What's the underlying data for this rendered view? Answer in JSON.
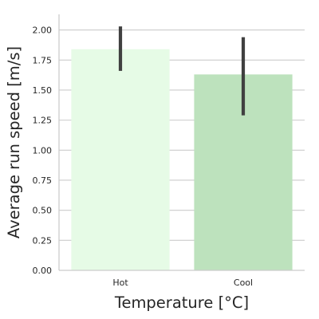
{
  "chart_data": {
    "type": "bar",
    "categories": [
      "Hot",
      "Cool"
    ],
    "values": [
      1.84,
      1.63
    ],
    "error_bars": [
      {
        "low": 1.66,
        "high": 2.03
      },
      {
        "low": 1.29,
        "high": 1.94
      }
    ],
    "xlabel": "Temperature [°C]",
    "ylabel": "Average run speed [m/s]",
    "ylim": [
      0,
      2.13
    ],
    "yticks": [
      "0.00",
      "0.25",
      "0.50",
      "0.75",
      "1.00",
      "1.25",
      "1.50",
      "1.75",
      "2.00"
    ],
    "grid": "horizontal",
    "colors": {
      "bars": [
        "#e6fbe6",
        "#bde2bd"
      ],
      "error_bar": "#404040",
      "grid": "#cccccc",
      "spine": "#cccccc"
    }
  }
}
